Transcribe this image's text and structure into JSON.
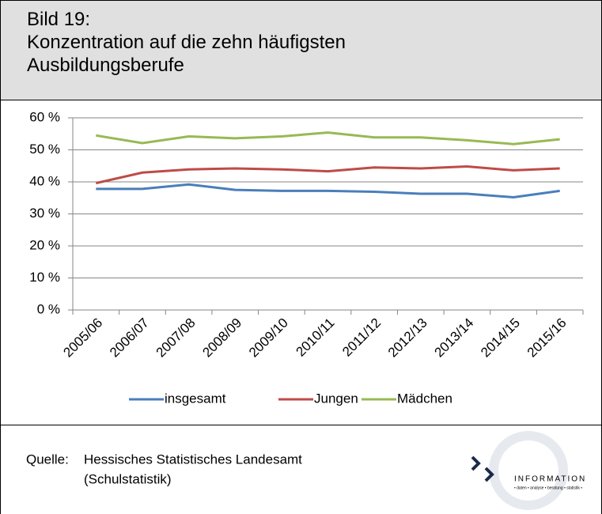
{
  "figure_label": "Bild 19:",
  "chart_data": {
    "type": "line",
    "title": "Konzentration auf die zehn häufigsten Ausbildungsberufe",
    "categories": [
      "2005/06",
      "2006/07",
      "2007/08",
      "2008/09",
      "2009/10",
      "2010/11",
      "2011/12",
      "2012/13",
      "2013/14",
      "2014/15",
      "2015/16"
    ],
    "series": [
      {
        "name": "insgesamt",
        "color": "#4a7ebb",
        "values": [
          37.8,
          37.8,
          39.2,
          37.5,
          37.2,
          37.2,
          36.9,
          36.3,
          36.3,
          35.2,
          37.2
        ]
      },
      {
        "name": "Jungen",
        "color": "#be4b48",
        "values": [
          39.6,
          42.9,
          43.9,
          44.2,
          43.9,
          43.3,
          44.5,
          44.2,
          44.8,
          43.6,
          44.2
        ]
      },
      {
        "name": "Mädchen",
        "color": "#98b954",
        "values": [
          54.5,
          52.1,
          54.2,
          53.6,
          54.2,
          55.4,
          53.9,
          53.9,
          53.0,
          51.8,
          53.3
        ]
      }
    ],
    "ylim": [
      0,
      60
    ],
    "yticks": [
      {
        "value": 0,
        "label": "0 %"
      },
      {
        "value": 10,
        "label": "10 %"
      },
      {
        "value": 20,
        "label": "20 %"
      },
      {
        "value": 30,
        "label": "30 %"
      },
      {
        "value": 40,
        "label": "40 %"
      },
      {
        "value": 50,
        "label": "50 %"
      },
      {
        "value": 60,
        "label": "60 %"
      }
    ],
    "grid": true,
    "legend": "bottom"
  },
  "source": {
    "label": "Quelle:",
    "lines": [
      "Hessisches Statistisches Landesamt",
      "(Schulstatistik)"
    ]
  },
  "logo": {
    "title": "INFORMATION",
    "subtitle": "• daten • analyse • beratung • statistik •"
  }
}
